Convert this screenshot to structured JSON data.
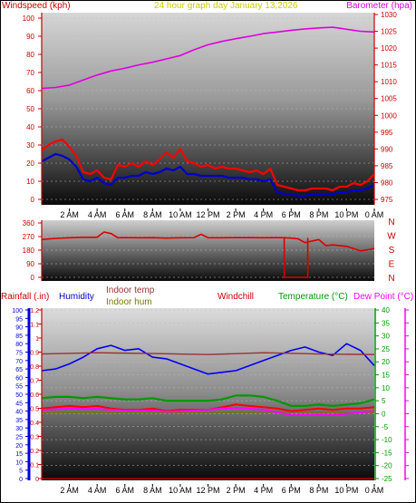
{
  "colors": {
    "frame": "#000000",
    "axis_red": "#cc0000",
    "title_yellow": "#cccc00",
    "barometer": "#e000e0",
    "wind_gust": "#ff0000",
    "wind_avg": "#0000cc",
    "wind_dir": "#dd0000",
    "humidity": "#0000ff",
    "indoor_temp": "#993333",
    "indoor_hum": "#777700",
    "windchill": "#ff0000",
    "temperature": "#009900",
    "dew_point": "#ff00ff",
    "rain_axis": "#0000dd"
  },
  "chart_data": [
    {
      "type": "line",
      "title": "24 hour graph day   January 13,2026",
      "left_axis_label": "Windspeed (kph)",
      "right_axis_label": "Barometer (hpa)",
      "ylim_left": [
        0,
        100
      ],
      "ylim_right": [
        975,
        1030
      ],
      "yticks_left": [
        "0",
        "10",
        "20",
        "30",
        "40",
        "50",
        "60",
        "70",
        "80",
        "90",
        "100"
      ],
      "yticks_right": [
        "975",
        "980",
        "985",
        "990",
        "995",
        "1000",
        "1005",
        "1010",
        "1015",
        "1020",
        "1025",
        "1030"
      ],
      "x_hours": [
        0,
        24
      ],
      "xticks": [
        "2 AM",
        "4 AM",
        "6 AM",
        "8 AM",
        "10 AM",
        "12 PM",
        "2 PM",
        "4 PM",
        "6 PM",
        "8 PM",
        "10 PM",
        "0 AM"
      ],
      "series": [
        {
          "name": "Barometer",
          "axis": "right",
          "x": [
            0,
            1,
            2,
            3,
            4,
            5,
            6,
            7,
            8,
            9,
            10,
            11,
            12,
            13,
            14,
            15,
            16,
            17,
            18,
            19,
            20,
            21,
            22,
            23,
            24
          ],
          "values": [
            1008,
            1008.3,
            1009,
            1010.5,
            1012,
            1013.2,
            1014,
            1015,
            1015.8,
            1016.8,
            1017.8,
            1019.5,
            1021,
            1022,
            1022.8,
            1023.5,
            1024.3,
            1024.8,
            1025.3,
            1025.7,
            1026,
            1026.2,
            1025.6,
            1025,
            1024.8
          ]
        },
        {
          "x": [
            0,
            0.5,
            1,
            1.5,
            2,
            2.5,
            3,
            3.5,
            4,
            4.5,
            5,
            5.5,
            6,
            6.5,
            7,
            7.5,
            8,
            8.5,
            9,
            9.5,
            10,
            10.5,
            11,
            11.5,
            12,
            12.5,
            13,
            13.5,
            14,
            14.5,
            15,
            15.5,
            16,
            16.5,
            17,
            17.5,
            18,
            18.5,
            19,
            19.5,
            20,
            20.5,
            21,
            21.5,
            22,
            22.5,
            23,
            23.5,
            24
          ],
          "values": [
            27,
            30,
            32,
            33,
            29,
            24,
            15,
            14,
            16,
            12,
            11,
            19,
            18,
            20,
            18,
            21,
            19,
            22,
            26,
            23,
            28,
            21,
            20,
            18,
            19,
            17,
            18,
            17,
            17,
            16,
            15,
            16,
            14,
            17,
            8,
            7,
            6,
            5,
            5,
            6,
            6,
            6,
            5,
            7,
            7,
            9,
            8,
            10,
            14
          ]
        },
        {
          "x": [
            0,
            0.5,
            1,
            1.5,
            2,
            2.5,
            3,
            3.5,
            4,
            4.5,
            5,
            5.5,
            6,
            6.5,
            7,
            7.5,
            8,
            8.5,
            9,
            9.5,
            10,
            10.5,
            11,
            11.5,
            12,
            12.5,
            13,
            13.5,
            14,
            14.5,
            15,
            15.5,
            16,
            16.5,
            17,
            17.5,
            18,
            18.5,
            19,
            19.5,
            20,
            20.5,
            21,
            21.5,
            22,
            22.5,
            23,
            23.5,
            24
          ],
          "values": [
            21,
            23,
            25,
            24,
            22,
            18,
            11,
            10,
            12,
            9,
            8,
            12,
            12,
            13,
            13,
            15,
            14,
            15,
            17,
            16,
            18,
            14,
            14,
            13,
            13,
            13,
            13,
            12,
            12,
            12,
            11,
            11,
            10,
            11,
            4,
            3,
            3,
            2,
            2,
            3,
            3,
            3,
            3,
            4,
            4,
            5,
            5,
            6,
            8
          ]
        }
      ]
    },
    {
      "type": "line",
      "ylim": [
        0,
        360
      ],
      "yticks": [
        "0",
        "90",
        "180",
        "270",
        "360"
      ],
      "compass_labels": [
        "N",
        "W",
        "S",
        "E",
        "N"
      ],
      "x_hours": [
        0,
        24
      ],
      "series": [
        {
          "x": [
            0,
            1,
            2,
            3,
            4,
            4.5,
            5,
            5.5,
            6,
            7,
            8,
            9,
            10,
            11,
            11.5,
            12,
            13,
            14,
            15,
            16,
            17,
            17.5,
            18,
            18.5,
            19,
            20,
            20.5,
            21,
            22,
            23,
            24
          ],
          "values": [
            250,
            258,
            262,
            265,
            265,
            300,
            290,
            262,
            263,
            262,
            263,
            260,
            262,
            263,
            285,
            262,
            262,
            263,
            263,
            262,
            263,
            262,
            260,
            255,
            230,
            250,
            210,
            215,
            205,
            175,
            190
          ]
        }
      ]
    },
    {
      "type": "line",
      "ylim_rain": [
        0,
        1.2
      ],
      "yticks_rain": [
        "0",
        "0.1",
        "0.2",
        "0.3",
        "0.4",
        "0.5",
        "0.6",
        "0.7",
        "0.8",
        "0.9",
        "1",
        "1.1",
        "1.2"
      ],
      "ylim_humidity": [
        0,
        100
      ],
      "yticks_humidity": [
        "0",
        "5",
        "10",
        "15",
        "20",
        "25",
        "30",
        "35",
        "40",
        "45",
        "50",
        "55",
        "60",
        "65",
        "70",
        "75",
        "80",
        "85",
        "90",
        "95",
        "100"
      ],
      "ylim_temp": [
        -25,
        40
      ],
      "yticks_temp": [
        "-25",
        "-20",
        "-15",
        "-10",
        "-5",
        "0",
        "5",
        "10",
        "15",
        "20",
        "25",
        "30",
        "35",
        "40"
      ],
      "legend": [
        {
          "label": "Rainfall (.in)",
          "color": "#cc0000"
        },
        {
          "label": "Humidity",
          "color": "#0000cc"
        },
        {
          "label": "Indoor temp",
          "color": "#993333"
        },
        {
          "label": "Indoor hum",
          "color": "#777700"
        },
        {
          "label": "Windchill",
          "color": "#cc0000"
        },
        {
          "label": "Temperature (°C)",
          "color": "#009900"
        },
        {
          "label": "Dew Point (°C)",
          "color": "#ff00ff"
        }
      ],
      "x_hours": [
        0,
        24
      ],
      "series": [
        {
          "name": "Humidity",
          "axis": "humidity",
          "x": [
            0,
            1,
            2,
            3,
            4,
            5,
            6,
            7,
            8,
            9,
            10,
            11,
            12,
            13,
            14,
            15,
            16,
            17,
            18,
            19,
            20,
            21,
            22,
            23,
            24
          ],
          "values": [
            64,
            65,
            68,
            72,
            77,
            79,
            76,
            77,
            72,
            71,
            68,
            65,
            62,
            63,
            64,
            67,
            70,
            73,
            76,
            78,
            75,
            73,
            80,
            76,
            67
          ]
        },
        {
          "name": "Indoor temp",
          "axis": "temp",
          "x": [
            0,
            4,
            8,
            12,
            16,
            20,
            24
          ],
          "values": [
            23,
            23.5,
            23.2,
            22.8,
            23.5,
            23,
            22.8
          ]
        },
        {
          "name": "Indoor hum",
          "axis": "humidity",
          "x": [
            0,
            6,
            12,
            18,
            24
          ],
          "values": [
            39,
            39,
            39,
            39.5,
            39
          ]
        },
        {
          "name": "Temperature",
          "axis": "temp",
          "x": [
            0,
            1,
            2,
            3,
            4,
            5,
            6,
            7,
            8,
            9,
            10,
            11,
            12,
            13,
            14,
            15,
            16,
            17,
            18,
            19,
            20,
            21,
            22,
            23,
            24
          ],
          "values": [
            6,
            6.5,
            6.5,
            6,
            6.5,
            6,
            5.5,
            5.5,
            6,
            5,
            5,
            5,
            5,
            5.5,
            7,
            7,
            6.5,
            5,
            3,
            3,
            3.5,
            3,
            3.5,
            4,
            5.5
          ]
        },
        {
          "name": "Windchill",
          "axis": "temp",
          "x": [
            0,
            1,
            2,
            3,
            4,
            5,
            6,
            7,
            8,
            9,
            10,
            11,
            12,
            13,
            14,
            15,
            16,
            17,
            18,
            19,
            20,
            21,
            22,
            23,
            24
          ],
          "values": [
            2,
            2.5,
            3,
            2.5,
            3,
            2,
            1.5,
            1.5,
            2,
            1,
            1.5,
            1.5,
            1.5,
            2.5,
            3.5,
            3,
            2.5,
            2,
            1,
            1.5,
            2,
            1.5,
            2,
            2,
            2.5
          ]
        },
        {
          "name": "Dew Point",
          "axis": "temp",
          "x": [
            0,
            1,
            2,
            3,
            4,
            5,
            6,
            7,
            8,
            9,
            10,
            11,
            12,
            13,
            14,
            15,
            16,
            17,
            18,
            19,
            20,
            21,
            22,
            23,
            24
          ],
          "values": [
            1.5,
            1.7,
            2,
            1.8,
            1.9,
            1.5,
            1.2,
            1.2,
            1.3,
            0.8,
            1,
            1.2,
            1.5,
            2,
            2.2,
            2,
            1.5,
            0.5,
            -0.5,
            -0.5,
            -0.3,
            -0.5,
            0,
            0.5,
            1
          ]
        },
        {
          "name": "Rainfall",
          "axis": "rain",
          "x": [
            0,
            24
          ],
          "values": [
            0,
            0
          ]
        }
      ]
    }
  ]
}
